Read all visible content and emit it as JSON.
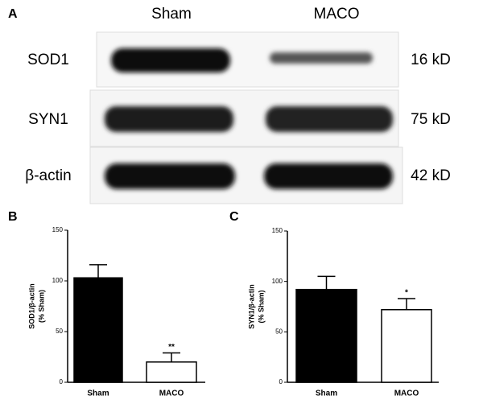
{
  "panel_a": {
    "label": "A",
    "lanes": [
      "Sham",
      "MACO"
    ],
    "rows": [
      {
        "protein": "SOD1",
        "size": "16 kD"
      },
      {
        "protein": "SYN1",
        "size": "75 kD"
      },
      {
        "protein": "β-actin",
        "size": "42 kD"
      }
    ]
  },
  "chart_data": [
    {
      "type": "bar",
      "panel_label": "B",
      "ylabel": [
        "SOD1/β-actin",
        "(% Sham)"
      ],
      "categories": [
        "Sham",
        "MACO"
      ],
      "values": [
        103,
        20
      ],
      "errors": [
        13,
        9
      ],
      "colors": [
        "#000000",
        "#ffffff"
      ],
      "ylim": [
        0,
        150
      ],
      "yticks": [
        0,
        50,
        100,
        150
      ],
      "annotations": [
        {
          "category": "MACO",
          "text": "**"
        }
      ]
    },
    {
      "type": "bar",
      "panel_label": "C",
      "ylabel": [
        "SYN1/β-actin",
        "(% Sham)"
      ],
      "categories": [
        "Sham",
        "MACO"
      ],
      "values": [
        92,
        72
      ],
      "errors": [
        13,
        11
      ],
      "colors": [
        "#000000",
        "#ffffff"
      ],
      "ylim": [
        0,
        150
      ],
      "yticks": [
        0,
        50,
        100,
        150
      ],
      "annotations": [
        {
          "category": "MACO",
          "text": "*"
        }
      ]
    }
  ]
}
